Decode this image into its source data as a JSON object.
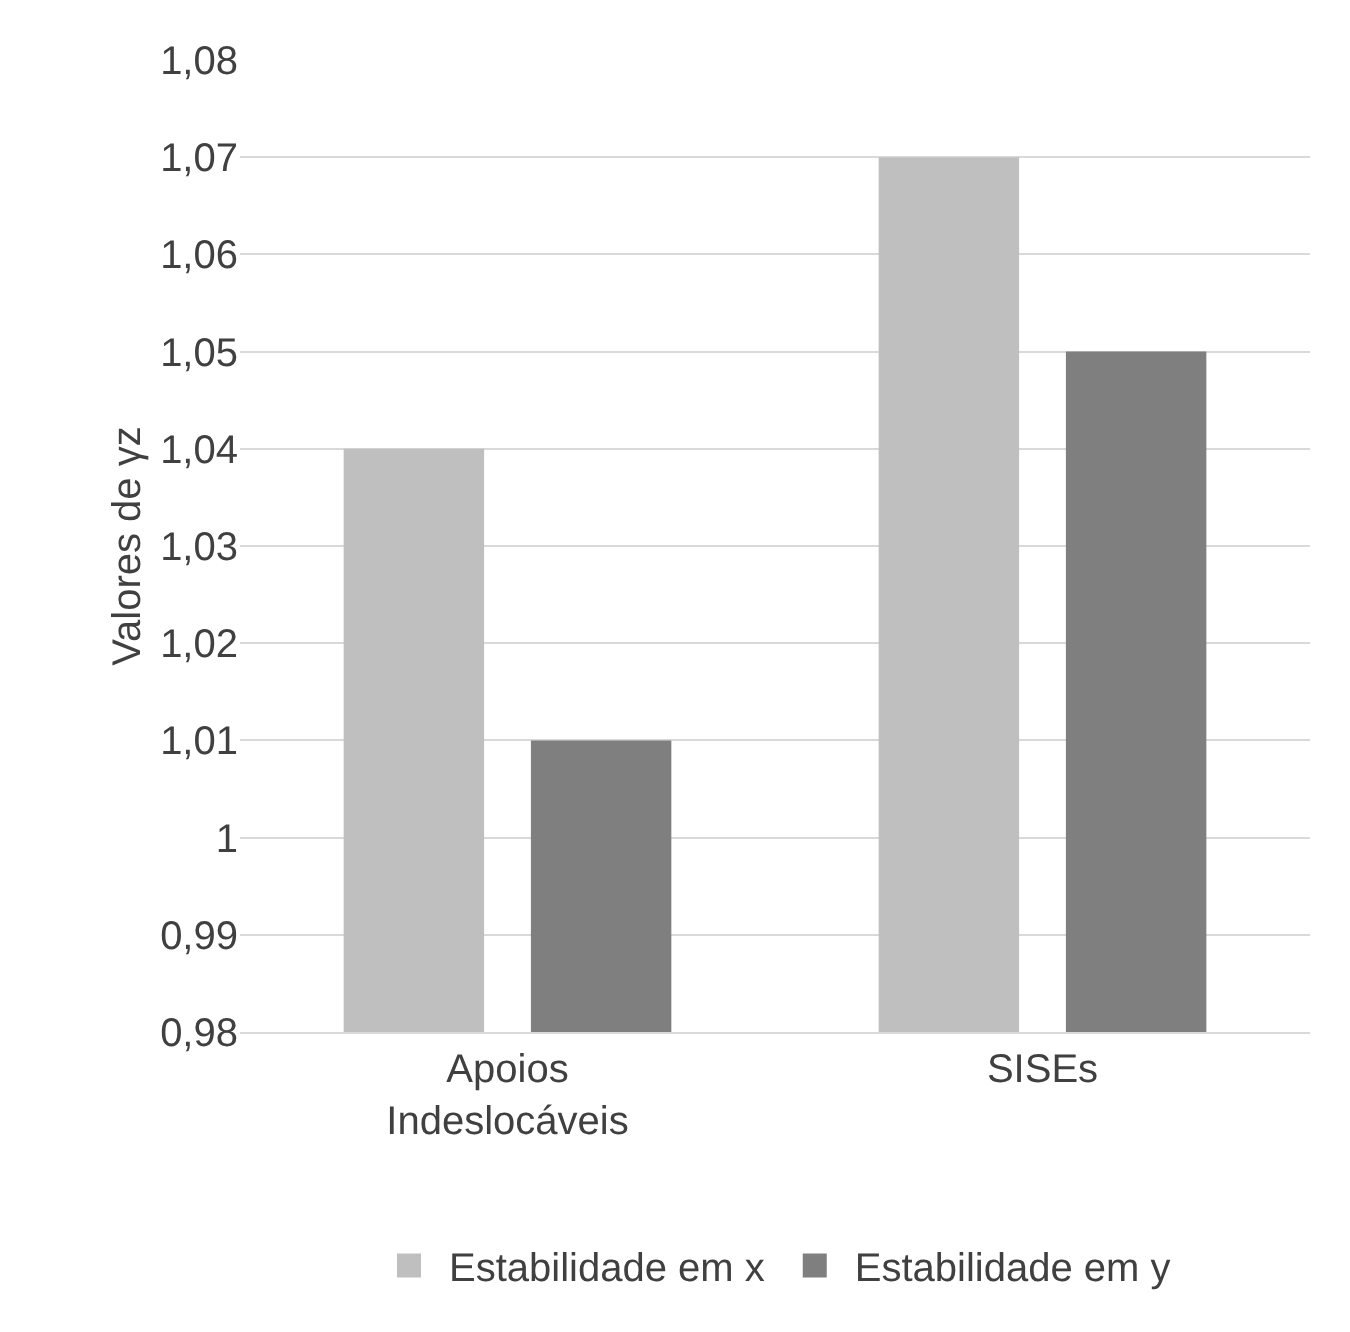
{
  "chart_data": {
    "type": "bar",
    "ylabel": "Valores de γz",
    "categories": [
      "Apoios Indeslocáveis",
      "SISEs"
    ],
    "series": [
      {
        "name": "Estabilidade em x",
        "color": "#bfbfbf",
        "values": [
          1.04,
          1.07
        ]
      },
      {
        "name": "Estabilidade em y",
        "color": "#7f7f7f",
        "values": [
          1.01,
          1.05
        ]
      }
    ],
    "ylim": [
      0.98,
      1.08
    ],
    "yticks": [
      {
        "value": 0.98,
        "label": "0,98"
      },
      {
        "value": 0.99,
        "label": "0,99"
      },
      {
        "value": 1,
        "label": "1"
      },
      {
        "value": 1.01,
        "label": "1,01"
      },
      {
        "value": 1.02,
        "label": "1,02"
      },
      {
        "value": 1.03,
        "label": "1,03"
      },
      {
        "value": 1.04,
        "label": "1,04"
      },
      {
        "value": 1.05,
        "label": "1,05"
      },
      {
        "value": 1.06,
        "label": "1,06"
      },
      {
        "value": 1.07,
        "label": "1,07"
      },
      {
        "value": 1.08,
        "label": "1,08"
      }
    ],
    "grid": "y",
    "legend": "bottom"
  }
}
